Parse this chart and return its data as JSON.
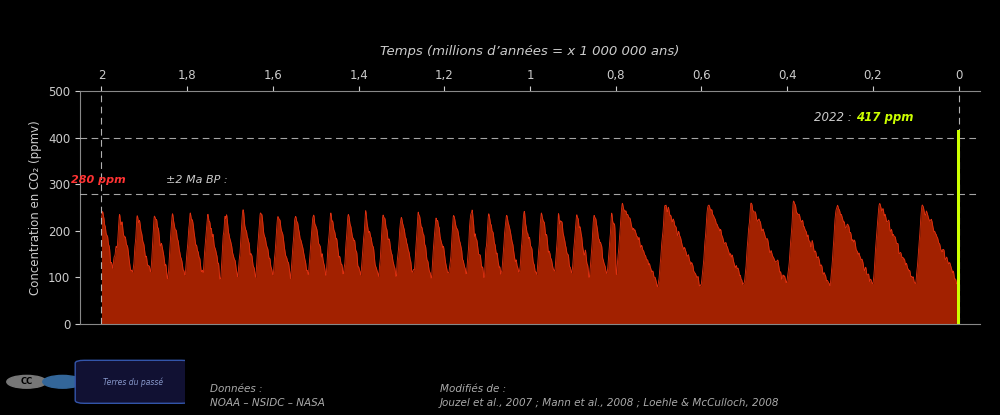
{
  "title": "Temps (millions d’années = x 1 000 000 ans)",
  "ylabel": "Concentration en CO₂ (ppmv)",
  "bg_color": "#000000",
  "plot_bg_color": "#000000",
  "spine_color": "#888888",
  "tick_color": "#cccccc",
  "title_color": "#cccccc",
  "ylabel_color": "#cccccc",
  "line_color": "#e03010",
  "fill_color": "#c02800",
  "ylim": [
    0,
    500
  ],
  "yticks": [
    0,
    100,
    200,
    300,
    400,
    500
  ],
  "xticks": [
    0.0,
    0.2,
    0.4,
    0.6,
    0.8,
    1.0,
    1.2,
    1.4,
    1.6,
    1.8,
    2.0
  ],
  "xtick_labels": [
    "0",
    "0,2",
    "0,4",
    "0,6",
    "0,8",
    "1",
    "1,2",
    "1,4",
    "1,6",
    "1,8",
    "2"
  ],
  "hline_y": [
    280,
    400
  ],
  "hline_color": "#ffffff",
  "vline_color": "#ffffff",
  "annotation_2ma_text": "±2 Ma BP : ",
  "annotation_280_text": "280 ppm",
  "annotation_color_2ma": "#cccccc",
  "annotation_color_280": "#ff3333",
  "annotation_color_2022_label": "#cccccc",
  "annotation_color_2022_val": "#ccff00",
  "co2_bar_color": "#ccff00",
  "footer_text1": "Données :",
  "footer_text2": "NOAA – NSIDC – NASA",
  "footer_text3": "Modifiés de :",
  "footer_text4": "Jouzel et al., 2007 ; Mann et al., 2008 ; Loehle & McCulloch, 2008",
  "footer_color": "#aaaaaa",
  "fig_width": 10.0,
  "fig_height": 4.15,
  "dpi": 100
}
